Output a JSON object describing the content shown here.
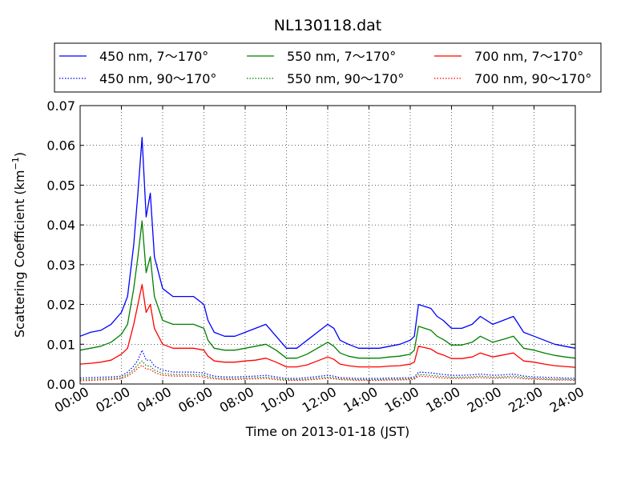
{
  "chart_data": {
    "type": "line",
    "title": "NL130118.dat",
    "xlabel": "Time on 2013-01-18 (JST)",
    "ylabel": "Scattering Coefficient (km",
    "ylabel_sup": "−1",
    "ylabel_close": ")",
    "xlim": [
      0,
      24
    ],
    "ylim": [
      0,
      0.07
    ],
    "x_tick_values": [
      0,
      2,
      4,
      6,
      8,
      10,
      12,
      14,
      16,
      18,
      20,
      22,
      24
    ],
    "x_tick_labels": [
      "00:00",
      "02:00",
      "04:00",
      "06:00",
      "08:00",
      "10:00",
      "12:00",
      "14:00",
      "16:00",
      "18:00",
      "20:00",
      "22:00",
      "24:00"
    ],
    "y_tick_values": [
      0,
      0.01,
      0.02,
      0.03,
      0.04,
      0.05,
      0.06,
      0.07
    ],
    "y_tick_labels": [
      "0.00",
      "0.01",
      "0.02",
      "0.03",
      "0.04",
      "0.05",
      "0.06",
      "0.07"
    ],
    "grid": true,
    "legend_position": "top, above plot (3 columns)",
    "x": [
      0,
      0.5,
      1,
      1.5,
      2,
      2.3,
      2.6,
      2.8,
      3,
      3.2,
      3.4,
      3.6,
      4,
      4.5,
      5,
      5.5,
      6,
      6.2,
      6.5,
      7,
      7.5,
      8,
      8.5,
      9,
      9.5,
      10,
      10.5,
      11,
      11.5,
      12,
      12.3,
      12.6,
      13,
      13.5,
      14,
      14.5,
      15,
      15.5,
      16,
      16.2,
      16.4,
      17,
      17.3,
      17.6,
      18,
      18.5,
      19,
      19.4,
      20,
      20.5,
      21,
      21.5,
      22,
      22.5,
      23,
      23.5,
      24
    ],
    "series": [
      {
        "name": "450 nm, 7～170°",
        "color": "#0000ff",
        "style": "solid",
        "values": [
          0.012,
          0.013,
          0.0135,
          0.015,
          0.018,
          0.022,
          0.035,
          0.048,
          0.062,
          0.042,
          0.048,
          0.032,
          0.024,
          0.022,
          0.022,
          0.022,
          0.02,
          0.016,
          0.013,
          0.012,
          0.012,
          0.013,
          0.014,
          0.015,
          0.012,
          0.009,
          0.009,
          0.011,
          0.013,
          0.015,
          0.014,
          0.011,
          0.01,
          0.009,
          0.009,
          0.009,
          0.0095,
          0.01,
          0.011,
          0.012,
          0.02,
          0.019,
          0.017,
          0.016,
          0.014,
          0.014,
          0.015,
          0.017,
          0.015,
          0.016,
          0.017,
          0.013,
          0.012,
          0.011,
          0.01,
          0.0095,
          0.009
        ]
      },
      {
        "name": "450 nm, 90～170°",
        "color": "#0000ff",
        "style": "dotted",
        "values": [
          0.0015,
          0.0016,
          0.0017,
          0.0018,
          0.002,
          0.003,
          0.0045,
          0.006,
          0.0085,
          0.006,
          0.006,
          0.0045,
          0.0035,
          0.003,
          0.003,
          0.003,
          0.0028,
          0.0024,
          0.002,
          0.0018,
          0.0018,
          0.0019,
          0.002,
          0.0022,
          0.0018,
          0.0014,
          0.0014,
          0.0016,
          0.0019,
          0.0022,
          0.002,
          0.0016,
          0.0015,
          0.0014,
          0.0014,
          0.0014,
          0.0015,
          0.0015,
          0.0016,
          0.0018,
          0.003,
          0.0028,
          0.0026,
          0.0024,
          0.0022,
          0.0022,
          0.0023,
          0.0025,
          0.0022,
          0.0023,
          0.0025,
          0.002,
          0.0018,
          0.0017,
          0.0016,
          0.0015,
          0.0014
        ]
      },
      {
        "name": "550 nm, 7～170°",
        "color": "#008000",
        "style": "solid",
        "values": [
          0.0085,
          0.009,
          0.0095,
          0.0105,
          0.0125,
          0.015,
          0.024,
          0.032,
          0.041,
          0.028,
          0.032,
          0.022,
          0.016,
          0.015,
          0.015,
          0.015,
          0.014,
          0.011,
          0.009,
          0.0085,
          0.0085,
          0.009,
          0.0095,
          0.01,
          0.0085,
          0.0065,
          0.0065,
          0.0075,
          0.009,
          0.0105,
          0.0095,
          0.0078,
          0.007,
          0.0065,
          0.0065,
          0.0065,
          0.0068,
          0.007,
          0.0075,
          0.0085,
          0.0145,
          0.0135,
          0.012,
          0.0112,
          0.0098,
          0.0098,
          0.0105,
          0.012,
          0.0105,
          0.0112,
          0.012,
          0.009,
          0.0085,
          0.0078,
          0.0072,
          0.0068,
          0.0065
        ]
      },
      {
        "name": "550 nm, 90～170°",
        "color": "#008000",
        "style": "dotted",
        "values": [
          0.0011,
          0.0012,
          0.0013,
          0.0014,
          0.0016,
          0.0024,
          0.0036,
          0.0048,
          0.0058,
          0.0046,
          0.0045,
          0.0035,
          0.0027,
          0.0024,
          0.0024,
          0.0024,
          0.0022,
          0.0019,
          0.0016,
          0.0014,
          0.0014,
          0.0015,
          0.0016,
          0.0017,
          0.0014,
          0.0011,
          0.0011,
          0.0012,
          0.0015,
          0.0017,
          0.0016,
          0.0013,
          0.0012,
          0.0011,
          0.0011,
          0.0011,
          0.0012,
          0.0012,
          0.0013,
          0.0014,
          0.0024,
          0.0022,
          0.002,
          0.0019,
          0.0017,
          0.0017,
          0.0018,
          0.002,
          0.0017,
          0.0018,
          0.002,
          0.0016,
          0.0014,
          0.0013,
          0.0012,
          0.0012,
          0.0011
        ]
      },
      {
        "name": "700 nm, 7～170°",
        "color": "#ff0000",
        "style": "solid",
        "values": [
          0.005,
          0.0052,
          0.0055,
          0.006,
          0.0075,
          0.009,
          0.015,
          0.02,
          0.025,
          0.018,
          0.02,
          0.014,
          0.01,
          0.009,
          0.009,
          0.009,
          0.0085,
          0.007,
          0.0058,
          0.0055,
          0.0055,
          0.0058,
          0.006,
          0.0065,
          0.0055,
          0.0043,
          0.0043,
          0.0048,
          0.0058,
          0.0068,
          0.0062,
          0.005,
          0.0046,
          0.0043,
          0.0043,
          0.0043,
          0.0045,
          0.0046,
          0.005,
          0.0055,
          0.0095,
          0.0088,
          0.0078,
          0.0073,
          0.0064,
          0.0064,
          0.0068,
          0.0078,
          0.0068,
          0.0073,
          0.0078,
          0.0058,
          0.0055,
          0.005,
          0.0046,
          0.0044,
          0.0042
        ]
      },
      {
        "name": "700 nm, 90～170°",
        "color": "#ff0000",
        "style": "dotted",
        "values": [
          0.0008,
          0.0009,
          0.001,
          0.0011,
          0.0013,
          0.002,
          0.003,
          0.004,
          0.0047,
          0.0038,
          0.0037,
          0.0029,
          0.0022,
          0.002,
          0.002,
          0.002,
          0.0018,
          0.0015,
          0.0013,
          0.0011,
          0.0011,
          0.0012,
          0.0013,
          0.0014,
          0.0011,
          0.0009,
          0.0009,
          0.001,
          0.0012,
          0.0014,
          0.0013,
          0.0011,
          0.001,
          0.0009,
          0.0009,
          0.0009,
          0.001,
          0.001,
          0.0011,
          0.0012,
          0.002,
          0.0018,
          0.0016,
          0.0015,
          0.0014,
          0.0014,
          0.0015,
          0.0016,
          0.0014,
          0.0015,
          0.0016,
          0.0013,
          0.0012,
          0.0011,
          0.001,
          0.001,
          0.0009
        ]
      }
    ]
  }
}
